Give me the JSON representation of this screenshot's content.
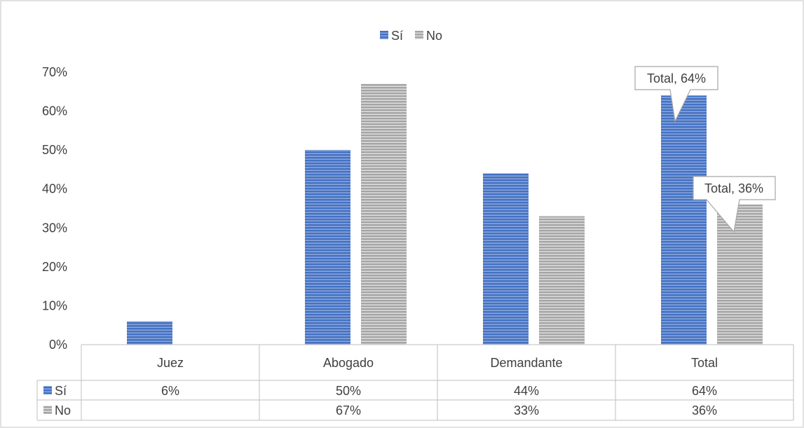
{
  "chart_data": {
    "type": "bar",
    "categories": [
      "Juez",
      "Abogado",
      "Demandante",
      "Total"
    ],
    "series": [
      {
        "name": "Sí",
        "values": [
          6,
          50,
          44,
          64
        ],
        "labels": [
          "6%",
          "50%",
          "44%",
          "64%"
        ],
        "color": "#4472C4"
      },
      {
        "name": "No",
        "values": [
          null,
          67,
          33,
          36
        ],
        "labels": [
          "",
          "67%",
          "33%",
          "36%"
        ],
        "color": "#A5A5A5"
      }
    ],
    "ylim": [
      0,
      70
    ],
    "y_ticks": [
      0,
      10,
      20,
      30,
      40,
      50,
      60,
      70
    ],
    "y_tick_labels": [
      "0%",
      "10%",
      "20%",
      "30%",
      "40%",
      "50%",
      "60%",
      "70%"
    ],
    "legend": {
      "placement": "top-center",
      "entries": [
        "Sí",
        "No"
      ]
    },
    "data_table": true,
    "callouts": [
      {
        "series": 0,
        "category": 3,
        "text": "Total, 64%"
      },
      {
        "series": 1,
        "category": 3,
        "text": "Total, 36%"
      }
    ],
    "grid": false
  }
}
